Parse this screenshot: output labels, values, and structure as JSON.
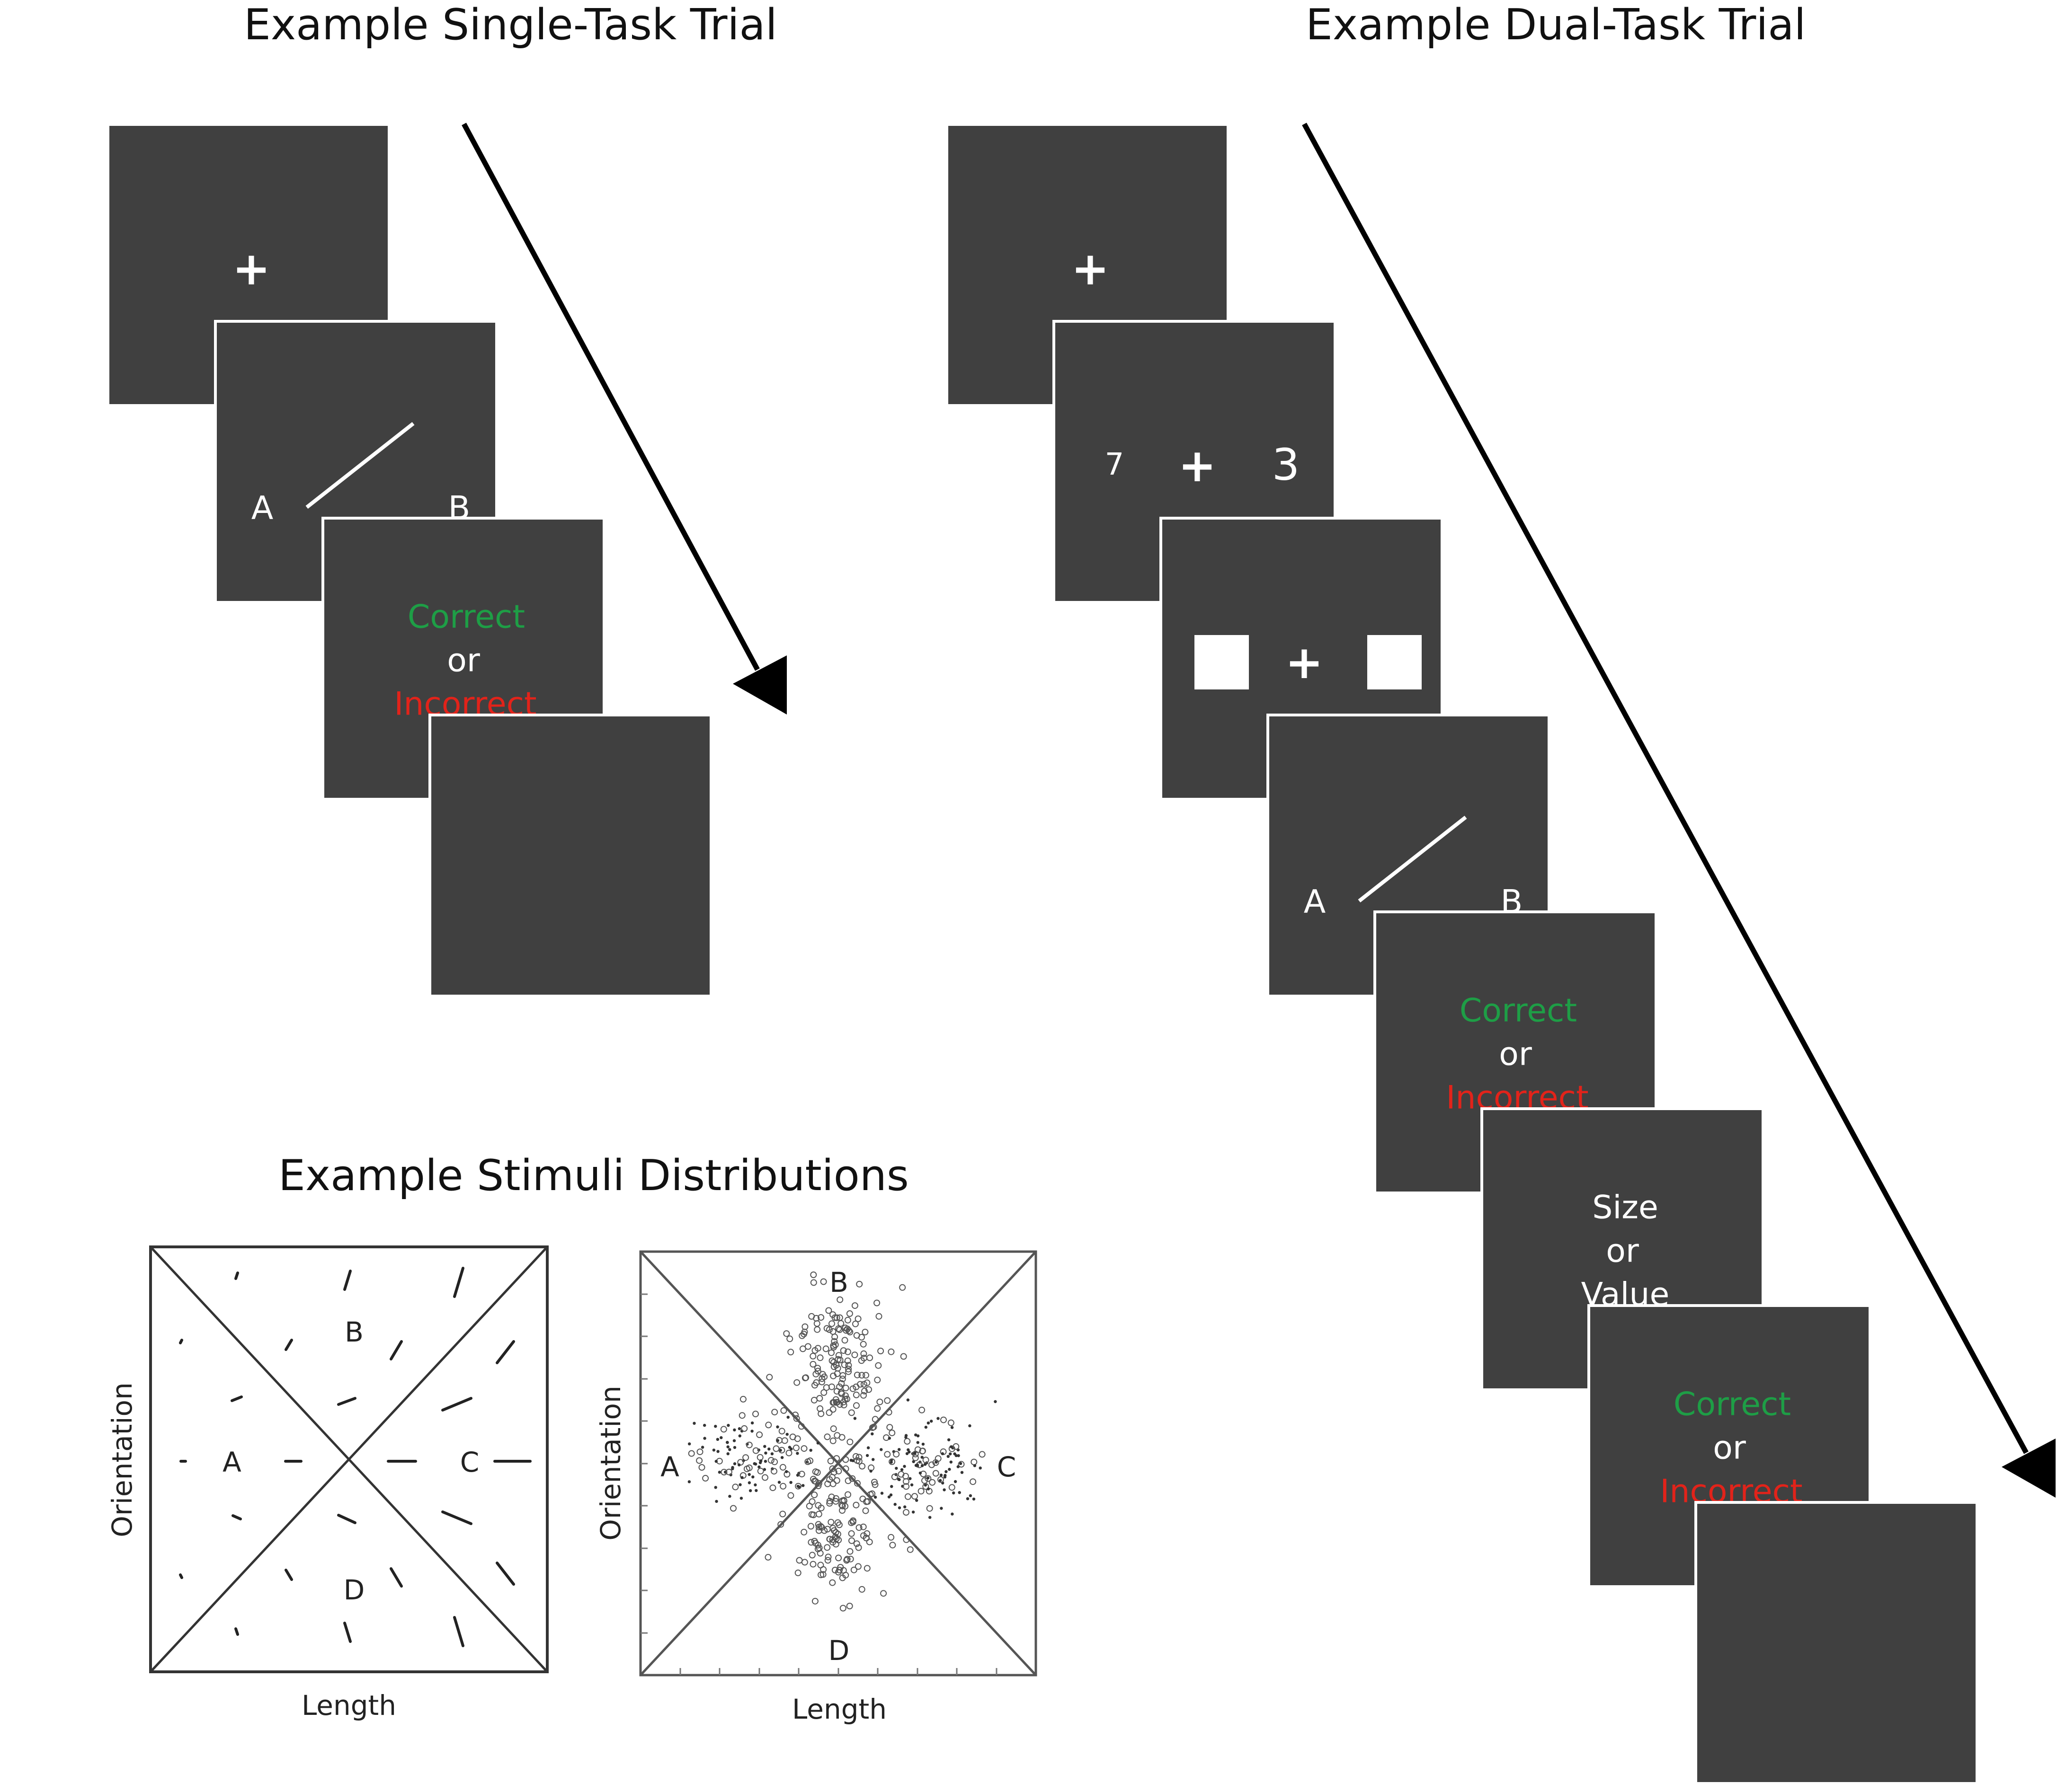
{
  "titles": {
    "single": "Example Single-Task Trial",
    "dual": "Example Dual-Task Trial",
    "stimuli": "Example Stimuli Distributions"
  },
  "single_trial": {
    "fixation": "+",
    "response_a": "A",
    "response_b": "B",
    "feedback_correct": "Correct",
    "feedback_or": "or",
    "feedback_incorrect": "Incorrect"
  },
  "dual_trial": {
    "fixation": "+",
    "digit_left": "7",
    "digit_right": "3",
    "response_a": "A",
    "response_b": "B",
    "feedback_correct": "Correct",
    "feedback_or": "or",
    "feedback_incorrect": "Incorrect",
    "query_size": "Size",
    "query_or": "or",
    "query_value": "Value",
    "feedback2_correct": "Correct",
    "feedback2_or": "or",
    "feedback2_incorrect": "Incorrect"
  },
  "plots": {
    "left": {
      "a": "A",
      "b": "B",
      "c": "C",
      "d": "D",
      "xlabel": "Length",
      "ylabel": "Orientation"
    },
    "right": {
      "a": "A",
      "b": "B",
      "c": "C",
      "d": "D",
      "xlabel": "Length",
      "ylabel": "Orientation"
    }
  },
  "colors": {
    "screen": "#404040",
    "correct": "#1e9e46",
    "incorrect": "#e2231a"
  }
}
